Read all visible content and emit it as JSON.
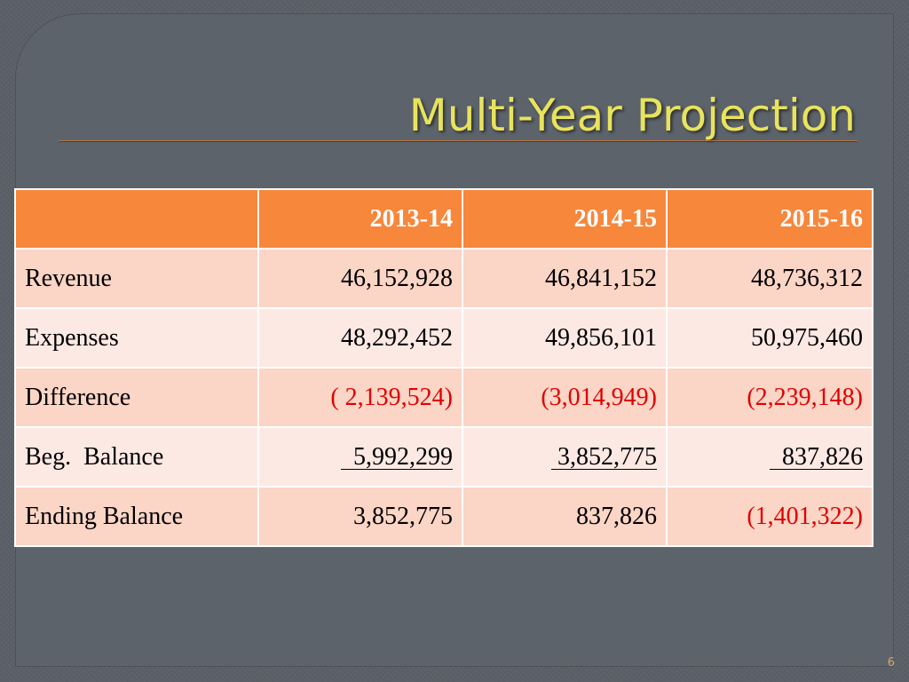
{
  "slide": {
    "title": "Multi-Year Projection",
    "page_number": "6"
  },
  "table": {
    "header": [
      "",
      "2013-14",
      "2014-15",
      "2015-16"
    ],
    "rows": [
      {
        "label": "Revenue",
        "values": [
          "46,152,928",
          "46,841,152",
          "48,736,312"
        ]
      },
      {
        "label": "Expenses",
        "values": [
          "48,292,452",
          "49,856,101",
          "50,975,460"
        ]
      },
      {
        "label": "Difference",
        "values": [
          "( 2,139,524)",
          "(3,014,949)",
          "(2,239,148)"
        ]
      },
      {
        "label": "Beg.  Balance",
        "values": [
          "5,992,299",
          "3,852,775",
          "837,826"
        ]
      },
      {
        "label": "Ending Balance",
        "values": [
          "3,852,775",
          "837,826",
          "(1,401,322)"
        ]
      }
    ]
  },
  "colors": {
    "header_bg": "#f7873b",
    "row_odd_bg": "#fbd5c6",
    "row_even_bg": "#fde9e4",
    "negative_text": "#e00000",
    "title_text": "#e8e35c",
    "background": "#5b6068"
  }
}
